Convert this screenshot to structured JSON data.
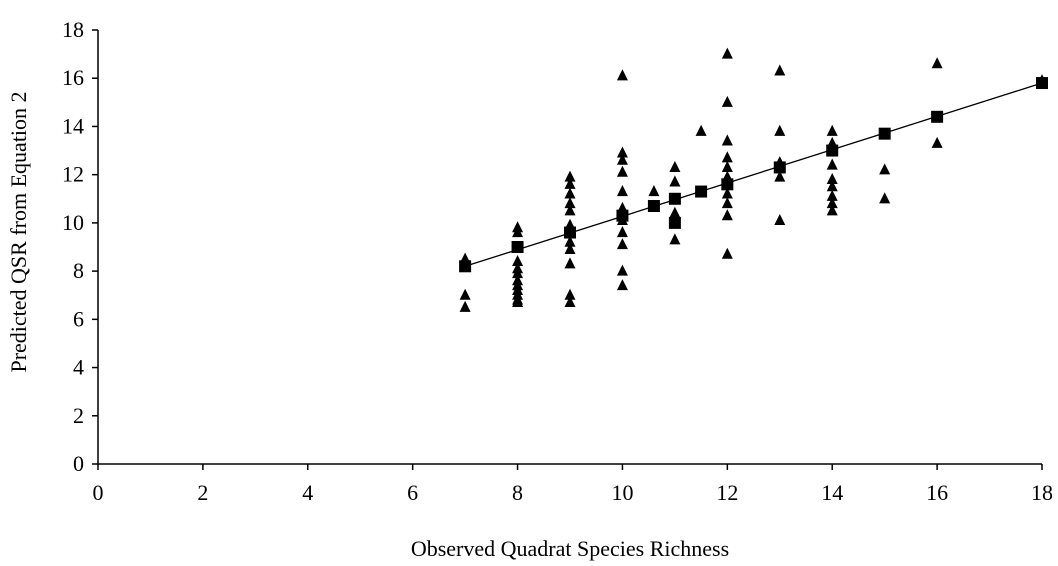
{
  "chart_data": {
    "type": "scatter",
    "title": "",
    "xlabel": "Observed Quadrat Species Richness",
    "ylabel": "Predicted QSR from Equation 2",
    "xlim": [
      0,
      18
    ],
    "ylim": [
      0,
      18
    ],
    "xticks": [
      0,
      2,
      4,
      6,
      8,
      10,
      12,
      14,
      16,
      18
    ],
    "yticks": [
      0,
      2,
      4,
      6,
      8,
      10,
      12,
      14,
      16,
      18
    ],
    "grid": false,
    "legend": "none",
    "series": [
      {
        "marker": "triangle",
        "color": "#000000",
        "points": [
          [
            7,
            8.5
          ],
          [
            7,
            7.0
          ],
          [
            7,
            6.5
          ],
          [
            8,
            9.8
          ],
          [
            8,
            9.6
          ],
          [
            8,
            8.4
          ],
          [
            8,
            8.1
          ],
          [
            8,
            7.9
          ],
          [
            8,
            7.6
          ],
          [
            8,
            7.4
          ],
          [
            8,
            7.2
          ],
          [
            8,
            7.0
          ],
          [
            8,
            6.8
          ],
          [
            8,
            6.7
          ],
          [
            9,
            11.9
          ],
          [
            9,
            11.6
          ],
          [
            9,
            11.2
          ],
          [
            9,
            10.8
          ],
          [
            9,
            10.5
          ],
          [
            9,
            9.9
          ],
          [
            9,
            9.6
          ],
          [
            9,
            9.2
          ],
          [
            9,
            8.9
          ],
          [
            9,
            8.3
          ],
          [
            9,
            7.0
          ],
          [
            9,
            6.7
          ],
          [
            10,
            16.1
          ],
          [
            10,
            12.9
          ],
          [
            10,
            12.6
          ],
          [
            10,
            12.1
          ],
          [
            10,
            11.3
          ],
          [
            10,
            10.6
          ],
          [
            10,
            10.1
          ],
          [
            10,
            9.6
          ],
          [
            10,
            9.1
          ],
          [
            10,
            8.0
          ],
          [
            10,
            7.4
          ],
          [
            10.6,
            11.3
          ],
          [
            11,
            12.3
          ],
          [
            11,
            11.7
          ],
          [
            11,
            10.4
          ],
          [
            11,
            10.0
          ],
          [
            11,
            9.3
          ],
          [
            11.5,
            13.8
          ],
          [
            12,
            17.0
          ],
          [
            12,
            15.0
          ],
          [
            12,
            13.4
          ],
          [
            12,
            12.7
          ],
          [
            12,
            12.3
          ],
          [
            12,
            11.9
          ],
          [
            12,
            11.7
          ],
          [
            12,
            11.2
          ],
          [
            12,
            10.8
          ],
          [
            12,
            10.3
          ],
          [
            12,
            8.7
          ],
          [
            13,
            16.3
          ],
          [
            13,
            13.8
          ],
          [
            13,
            12.5
          ],
          [
            13,
            11.9
          ],
          [
            13,
            10.1
          ],
          [
            14,
            13.8
          ],
          [
            14,
            13.3
          ],
          [
            14,
            12.4
          ],
          [
            14,
            11.8
          ],
          [
            14,
            11.5
          ],
          [
            14,
            11.1
          ],
          [
            14,
            10.8
          ],
          [
            14,
            10.5
          ],
          [
            15,
            12.2
          ],
          [
            15,
            11.0
          ],
          [
            16,
            16.6
          ],
          [
            16,
            13.3
          ],
          [
            18,
            15.9
          ]
        ]
      },
      {
        "marker": "square",
        "color": "#000000",
        "points": [
          [
            7,
            8.2
          ],
          [
            8,
            9.0
          ],
          [
            9,
            9.6
          ],
          [
            10,
            10.3
          ],
          [
            10.6,
            10.7
          ],
          [
            11,
            11.0
          ],
          [
            11,
            10.0
          ],
          [
            11.5,
            11.3
          ],
          [
            12,
            11.6
          ],
          [
            13,
            12.3
          ],
          [
            14,
            13.0
          ],
          [
            15,
            13.7
          ],
          [
            16,
            14.4
          ],
          [
            18,
            15.8
          ]
        ]
      }
    ],
    "fit_line": {
      "x": [
        7,
        18
      ],
      "y": [
        8.2,
        15.8
      ],
      "color": "#000000"
    }
  }
}
